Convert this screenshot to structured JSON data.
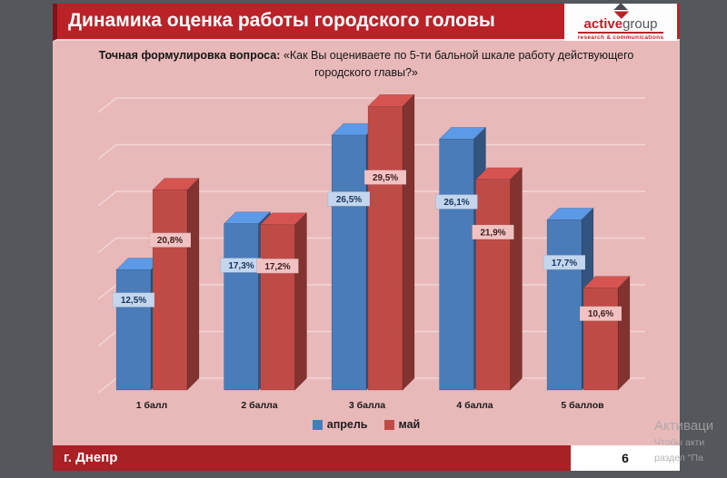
{
  "colors": {
    "desktop-bg": "#54575b",
    "slide-bg": "#e9b9b9",
    "header-red": "#bb2228",
    "header-edge": "#7d1418",
    "footer-red": "#a92025"
  },
  "desktop": {
    "watermark": {
      "line1": "Активаци",
      "line2": "Чтобы акти",
      "line3": "раздел \"Па"
    }
  },
  "slide": {
    "title": "Динамика оценка работы городского головы",
    "logo": {
      "name_bold": "active",
      "name_light": "group",
      "tagline": "research & communications"
    },
    "question_bold": "Точная формулировка вопроса:",
    "question_rest": " «Как Вы оцениваете по 5-ти бальной шкале работу действующего городского главы?»",
    "footer": {
      "city": "г. Днепр",
      "page": "6"
    }
  },
  "chart_data": {
    "type": "bar",
    "style": "3d-clustered",
    "title": "",
    "categories": [
      "1 балл",
      "2 балла",
      "3 балла",
      "4 балла",
      "5 баллов"
    ],
    "series": [
      {
        "name": "апрель",
        "color": "#4a7cba",
        "label_bg": "#c3d6ee",
        "label_text": "#17365d",
        "values": [
          12.5,
          17.3,
          26.5,
          26.1,
          17.7
        ]
      },
      {
        "name": "май",
        "color": "#bf4b47",
        "label_bg": "#f2c2c2",
        "label_text": "#3f2020",
        "values": [
          20.8,
          17.2,
          29.5,
          21.9,
          10.6
        ]
      }
    ],
    "value_suffix": "%",
    "decimal_separator": ",",
    "ylim": [
      0,
      35
    ],
    "gridline_step": 5,
    "grid": true,
    "legend_position": "bottom",
    "data_labels": true
  }
}
